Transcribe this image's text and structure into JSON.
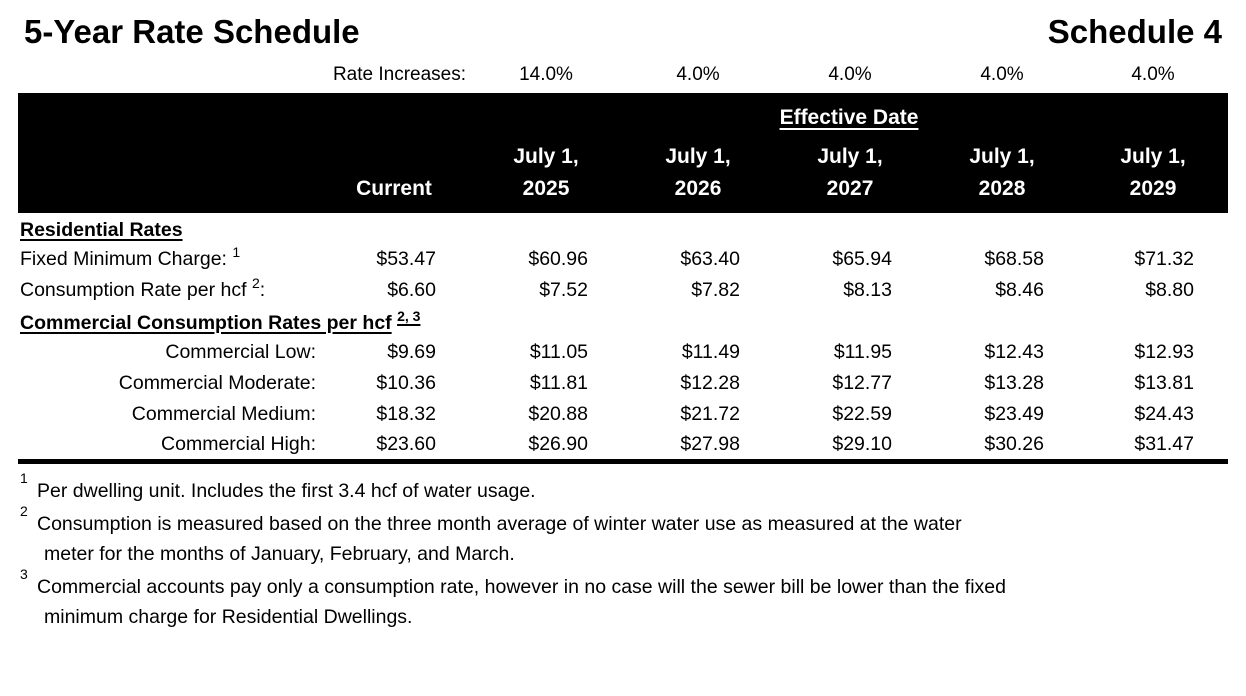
{
  "colors": {
    "header_bg": "#000000",
    "header_text": "#ffffff",
    "text": "#000000",
    "background": "#ffffff"
  },
  "page": {
    "title": "5-Year Rate Schedule",
    "schedule_label": "Schedule 4"
  },
  "rate_increases": {
    "label": "Rate Increases:",
    "values": [
      "14.0%",
      "4.0%",
      "4.0%",
      "4.0%",
      "4.0%"
    ]
  },
  "table": {
    "effective_date_label": "Effective Date",
    "current_label": "Current",
    "date_headers": [
      {
        "line1": "July 1,",
        "line2": "2025"
      },
      {
        "line1": "July 1,",
        "line2": "2026"
      },
      {
        "line1": "July 1,",
        "line2": "2027"
      },
      {
        "line1": "July 1,",
        "line2": "2028"
      },
      {
        "line1": "July 1,",
        "line2": "2029"
      }
    ],
    "sections": [
      {
        "heading": "Residential Rates",
        "heading_sup": "",
        "rows": [
          {
            "label": "Fixed Minimum Charge:",
            "sup": "1",
            "suffix": "",
            "values": [
              "$53.47",
              "$60.96",
              "$63.40",
              "$65.94",
              "$68.58",
              "$71.32"
            ]
          },
          {
            "label": "Consumption Rate per hcf",
            "sup": "2",
            "suffix": ":",
            "values": [
              "$6.60",
              "$7.52",
              "$7.82",
              "$8.13",
              "$8.46",
              "$8.80"
            ]
          }
        ]
      },
      {
        "heading": "Commercial Consumption Rates per hcf",
        "heading_sup": "2, 3",
        "rows": [
          {
            "label": "Commercial Low:",
            "sup": "",
            "suffix": "",
            "values": [
              "$9.69",
              "$11.05",
              "$11.49",
              "$11.95",
              "$12.43",
              "$12.93"
            ]
          },
          {
            "label": "Commercial Moderate:",
            "sup": "",
            "suffix": "",
            "values": [
              "$10.36",
              "$11.81",
              "$12.28",
              "$12.77",
              "$13.28",
              "$13.81"
            ]
          },
          {
            "label": "Commercial Medium:",
            "sup": "",
            "suffix": "",
            "values": [
              "$18.32",
              "$20.88",
              "$21.72",
              "$22.59",
              "$23.49",
              "$24.43"
            ]
          },
          {
            "label": "Commercial High:",
            "sup": "",
            "suffix": "",
            "values": [
              "$23.60",
              "$26.90",
              "$27.98",
              "$29.10",
              "$30.26",
              "$31.47"
            ]
          }
        ]
      }
    ]
  },
  "footnotes": [
    {
      "sup": "1",
      "line1": "Per dwelling unit. Includes the first 3.4 hcf of water usage.",
      "line2": ""
    },
    {
      "sup": "2",
      "line1": "Consumption is measured based on the three month average of winter water use as measured at the water",
      "line2": "meter for the months of January, February, and March."
    },
    {
      "sup": "3",
      "line1": "Commercial accounts pay only a consumption rate, however in no case will the sewer bill be lower than the fixed",
      "line2": "minimum charge for Residential Dwellings."
    }
  ]
}
